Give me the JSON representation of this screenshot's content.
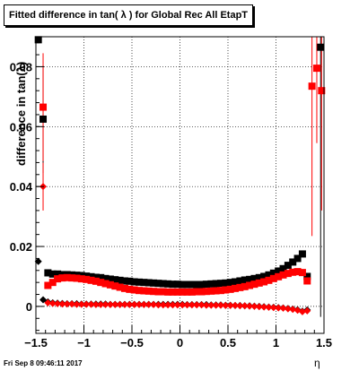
{
  "title": "Fitted difference in tan( λ ) for Global Rec All EtapT",
  "footer": "Fri Sep  8 09:46:11 2017",
  "colors": {
    "black": "#000000",
    "red": "#ff0000",
    "grid": "#000000"
  },
  "chart_data": {
    "type": "scatter",
    "title": "Fitted difference in tan( λ ) for Global Rec All EtapT",
    "xlabel": "η",
    "ylabel": "difference in tan(λ)",
    "xlim": [
      -1.5,
      1.5
    ],
    "ylim": [
      -0.009,
      0.09
    ],
    "xticks": [
      -1.5,
      -1,
      -0.5,
      0,
      0.5,
      1,
      1.5
    ],
    "xtick_labels": [
      "−1.5",
      "−1",
      "−0.5",
      "0",
      "0.5",
      "1",
      "1.5"
    ],
    "yticks": [
      0,
      0.02,
      0.04,
      0.06,
      0.08
    ],
    "ytick_labels": [
      "0",
      "0.02",
      "0.04",
      "0.06",
      "0.08"
    ],
    "grid": true,
    "x": [
      -1.475,
      -1.425,
      -1.375,
      -1.325,
      -1.275,
      -1.225,
      -1.175,
      -1.125,
      -1.075,
      -1.025,
      -0.975,
      -0.925,
      -0.875,
      -0.825,
      -0.775,
      -0.725,
      -0.675,
      -0.625,
      -0.575,
      -0.525,
      -0.475,
      -0.425,
      -0.375,
      -0.325,
      -0.275,
      -0.225,
      -0.175,
      -0.125,
      -0.075,
      -0.025,
      0.025,
      0.075,
      0.125,
      0.175,
      0.225,
      0.275,
      0.325,
      0.375,
      0.425,
      0.475,
      0.525,
      0.575,
      0.625,
      0.675,
      0.725,
      0.775,
      0.825,
      0.875,
      0.925,
      0.975,
      1.025,
      1.075,
      1.125,
      1.175,
      1.225,
      1.275,
      1.325,
      1.375,
      1.425,
      1.475
    ],
    "series": [
      {
        "marker": "square",
        "color": "#000000",
        "values": [
          0.089,
          0.0625,
          0.0112,
          0.0108,
          0.0108,
          0.0106,
          0.0106,
          0.0105,
          0.0104,
          0.0103,
          0.0101,
          0.0099,
          0.0097,
          0.0096,
          0.0093,
          0.0091,
          0.0089,
          0.0087,
          0.0085,
          0.0084,
          0.0082,
          0.0081,
          0.008,
          0.0079,
          0.0078,
          0.0077,
          0.0076,
          0.0075,
          0.0074,
          0.0074,
          0.0073,
          0.0073,
          0.0073,
          0.0073,
          0.0073,
          0.0074,
          0.0075,
          0.0076,
          0.0077,
          0.0078,
          0.008,
          0.0082,
          0.0085,
          0.0088,
          0.009,
          0.0093,
          0.0096,
          0.01,
          0.0105,
          0.0111,
          0.0118,
          0.0126,
          0.0137,
          0.0148,
          0.016,
          0.0175,
          0.01,
          null,
          null,
          0.0865
        ],
        "err_x": [
          null,
          null,
          null,
          null,
          null,
          null,
          null,
          null,
          null,
          null,
          null,
          null,
          null,
          null,
          null,
          null,
          null,
          null,
          null,
          null,
          null,
          null,
          null,
          null,
          null,
          null,
          null,
          null,
          null,
          null,
          null,
          null,
          null,
          null,
          null,
          null,
          null,
          null,
          null,
          null,
          null,
          null,
          null,
          null,
          null,
          null,
          null,
          null,
          null,
          null,
          null,
          null,
          null,
          null,
          null,
          null,
          null,
          null,
          null,
          1.465
        ],
        "err": [
          0.0,
          0.018,
          0.0,
          0.0,
          0.0,
          0.0,
          0.0,
          0.0,
          0.0,
          0.0,
          0.0,
          0.0,
          0.0,
          0.0,
          0.0,
          0.0,
          0.0,
          0.0,
          0.0,
          0.0,
          0.0,
          0.0,
          0.0,
          0.0,
          0.0,
          0.0,
          0.0,
          0.0,
          0.0,
          0.0,
          0.0,
          0.0,
          0.0,
          0.0,
          0.0,
          0.0,
          0.0,
          0.0,
          0.0,
          0.0,
          0.0,
          0.0,
          0.0,
          0.0,
          0.0,
          0.0,
          0.0,
          0.0,
          0.0,
          0.0,
          0.0,
          0.0,
          0.0,
          0.0,
          0.0,
          0.0,
          0.0,
          0.0,
          0.0,
          0.09
        ]
      },
      {
        "marker": "square",
        "color": "#ff0000",
        "values": [
          null,
          0.0665,
          0.007,
          0.008,
          0.0092,
          0.0095,
          0.0096,
          0.0095,
          0.0094,
          0.0092,
          0.009,
          0.0087,
          0.0084,
          0.008,
          0.0076,
          0.0072,
          0.0068,
          0.0064,
          0.006,
          0.0057,
          0.0055,
          0.0053,
          0.0052,
          0.0051,
          0.005,
          0.0049,
          0.0049,
          0.0048,
          0.0048,
          0.0048,
          0.0048,
          0.0048,
          0.0048,
          0.0049,
          0.0049,
          0.005,
          0.0051,
          0.0052,
          0.0053,
          0.0055,
          0.0057,
          0.006,
          0.0063,
          0.0066,
          0.007,
          0.0074,
          0.0078,
          0.0082,
          0.0087,
          0.0093,
          0.0099,
          0.0105,
          0.011,
          0.0114,
          0.0116,
          0.0113,
          0.0085,
          0.0735,
          0.0795,
          0.072
        ],
        "err": [
          0.0,
          0.018,
          0.0,
          0.0,
          0.0,
          0.0,
          0.0,
          0.0,
          0.0,
          0.0,
          0.0,
          0.0,
          0.0,
          0.0,
          0.0,
          0.0,
          0.0,
          0.0,
          0.0,
          0.0,
          0.0,
          0.0,
          0.0,
          0.0,
          0.0,
          0.0,
          0.0,
          0.0,
          0.0,
          0.0,
          0.0,
          0.0,
          0.0,
          0.0,
          0.0,
          0.0,
          0.0,
          0.0,
          0.0,
          0.0,
          0.0,
          0.0,
          0.0,
          0.0,
          0.0,
          0.0,
          0.0,
          0.0,
          0.0,
          0.0,
          0.0,
          0.0,
          0.0,
          0.0,
          0.0,
          0.0,
          0.0,
          0.05,
          0.025,
          0.04
        ]
      },
      {
        "marker": "diamond",
        "color": "#000000",
        "values": [
          0.015,
          0.0022,
          0.0015,
          0.0012,
          0.0011,
          0.001,
          0.0009,
          0.0009,
          0.0009,
          0.0008,
          0.0008,
          0.0008,
          0.0008,
          0.0008,
          0.0008,
          0.0007,
          0.0007,
          0.0007,
          0.0007,
          0.0007,
          0.0007,
          0.0007,
          0.0007,
          0.0007,
          0.0007,
          0.0007,
          0.0007,
          0.0007,
          0.0007,
          0.0007,
          0.0007,
          0.0006,
          0.0006,
          0.0006,
          0.0006,
          0.0006,
          0.0005,
          0.0005,
          0.0005,
          0.0004,
          0.0004,
          0.0003,
          0.0003,
          0.0002,
          0.0002,
          0.0001,
          0.0,
          -0.0001,
          -0.0002,
          -0.0003,
          -0.0004,
          -0.0005,
          -0.0007,
          -0.0009,
          -0.0011,
          -0.0016,
          -0.0012,
          null,
          null,
          null
        ],
        "err": [
          0.0,
          0.0,
          0.0,
          0.0,
          0.0,
          0.0,
          0.0,
          0.0,
          0.0,
          0.0,
          0.0,
          0.0,
          0.0,
          0.0,
          0.0,
          0.0,
          0.0,
          0.0,
          0.0,
          0.0,
          0.0,
          0.0,
          0.0,
          0.0,
          0.0,
          0.0,
          0.0,
          0.0,
          0.0,
          0.0,
          0.0,
          0.0,
          0.0,
          0.0,
          0.0,
          0.0,
          0.0,
          0.0,
          0.0,
          0.0,
          0.0,
          0.0,
          0.0,
          0.0,
          0.0,
          0.0,
          0.0,
          0.0,
          0.0,
          0.0,
          0.0,
          0.0,
          0.0,
          0.0,
          0.0,
          0.0,
          0.0,
          0.0,
          0.0,
          0.0
        ]
      },
      {
        "marker": "diamond",
        "color": "#ff0000",
        "values": [
          null,
          0.04,
          0.0012,
          0.001,
          0.0009,
          0.0008,
          0.0008,
          0.0008,
          0.0007,
          0.0007,
          0.0007,
          0.0007,
          0.0006,
          0.0006,
          0.0006,
          0.0006,
          0.0006,
          0.0006,
          0.0006,
          0.0006,
          0.0006,
          0.0006,
          0.0006,
          0.0006,
          0.0006,
          0.0005,
          0.0005,
          0.0005,
          0.0005,
          0.0005,
          0.0005,
          0.0005,
          0.0005,
          0.0005,
          0.0005,
          0.0004,
          0.0004,
          0.0004,
          0.0004,
          0.0003,
          0.0003,
          0.0003,
          0.0002,
          0.0002,
          0.0001,
          0.0,
          -0.0001,
          -0.0002,
          -0.0003,
          -0.0004,
          -0.0005,
          -0.0006,
          -0.0008,
          -0.001,
          -0.0013,
          -0.0018,
          -0.0015,
          null,
          null,
          null
        ],
        "err": [
          0.0,
          0.008,
          0.0,
          0.0,
          0.0,
          0.0,
          0.0,
          0.0,
          0.0,
          0.0,
          0.0,
          0.0,
          0.0,
          0.0,
          0.0,
          0.0,
          0.0,
          0.0,
          0.0,
          0.0,
          0.0,
          0.0,
          0.0,
          0.0,
          0.0,
          0.0,
          0.0,
          0.0,
          0.0,
          0.0,
          0.0,
          0.0,
          0.0,
          0.0,
          0.0,
          0.0,
          0.0,
          0.0,
          0.0,
          0.0,
          0.0,
          0.0,
          0.0,
          0.0,
          0.0,
          0.0,
          0.0,
          0.0,
          0.0,
          0.0,
          0.0,
          0.0,
          0.0,
          0.0,
          0.0,
          0.0,
          0.0,
          0.0,
          0.0,
          0.0
        ]
      }
    ]
  }
}
